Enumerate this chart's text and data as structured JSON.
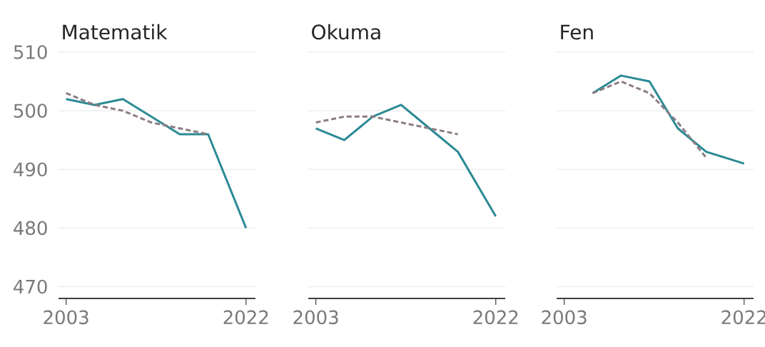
{
  "chart_data": [
    {
      "type": "line",
      "title": "Matematik",
      "x": [
        2003,
        2006,
        2009,
        2012,
        2015,
        2018,
        2022
      ],
      "xlim": [
        2002.2,
        2023
      ],
      "ylim": [
        468,
        510
      ],
      "xticks": [
        2003,
        2022
      ],
      "yticks": [
        470,
        480,
        490,
        500,
        510
      ],
      "grid": "y",
      "series": [
        {
          "color": "#2b8a94",
          "line_style": "solid",
          "values": [
            502,
            501,
            502,
            499,
            496,
            496,
            480
          ]
        },
        {
          "color": "#8c7c84",
          "line_style": "dashed",
          "values": [
            503,
            501,
            500,
            498,
            497,
            496,
            null
          ]
        }
      ]
    },
    {
      "type": "line",
      "title": "Okuma",
      "x": [
        2003,
        2006,
        2009,
        2012,
        2015,
        2018,
        2022
      ],
      "xlim": [
        2002.2,
        2023
      ],
      "ylim": [
        468,
        510
      ],
      "xticks": [
        2003,
        2022
      ],
      "yticks": [
        470,
        480,
        490,
        500,
        510
      ],
      "grid": "y",
      "tick_labels": "x",
      "series": [
        {
          "color": "#2b8a94",
          "line_style": "solid",
          "values": [
            497,
            495,
            499,
            501,
            497,
            493,
            482
          ]
        },
        {
          "color": "#8c7c84",
          "line_style": "dashed",
          "values": [
            498,
            499,
            499,
            498,
            497,
            496,
            null
          ]
        }
      ]
    },
    {
      "type": "line",
      "title": "Fen",
      "xlim": [
        2002.2,
        2023
      ],
      "ylim": [
        468,
        510
      ],
      "xticks": [
        2003,
        2022
      ],
      "yticks": [
        470,
        480,
        490,
        500,
        510
      ],
      "grid": "y",
      "tick_labels": "x",
      "series": [
        {
          "color": "#2b8a94",
          "line_style": "solid",
          "x": [
            2006,
            2009,
            2012,
            2015,
            2018,
            2022
          ],
          "values": [
            503,
            506,
            505,
            497,
            493,
            491
          ]
        },
        {
          "color": "#8c7c84",
          "line_style": "dashed",
          "x": [
            2006,
            2009,
            2012,
            2015,
            2018
          ],
          "values": [
            503,
            505,
            503,
            498,
            492
          ]
        }
      ]
    }
  ]
}
